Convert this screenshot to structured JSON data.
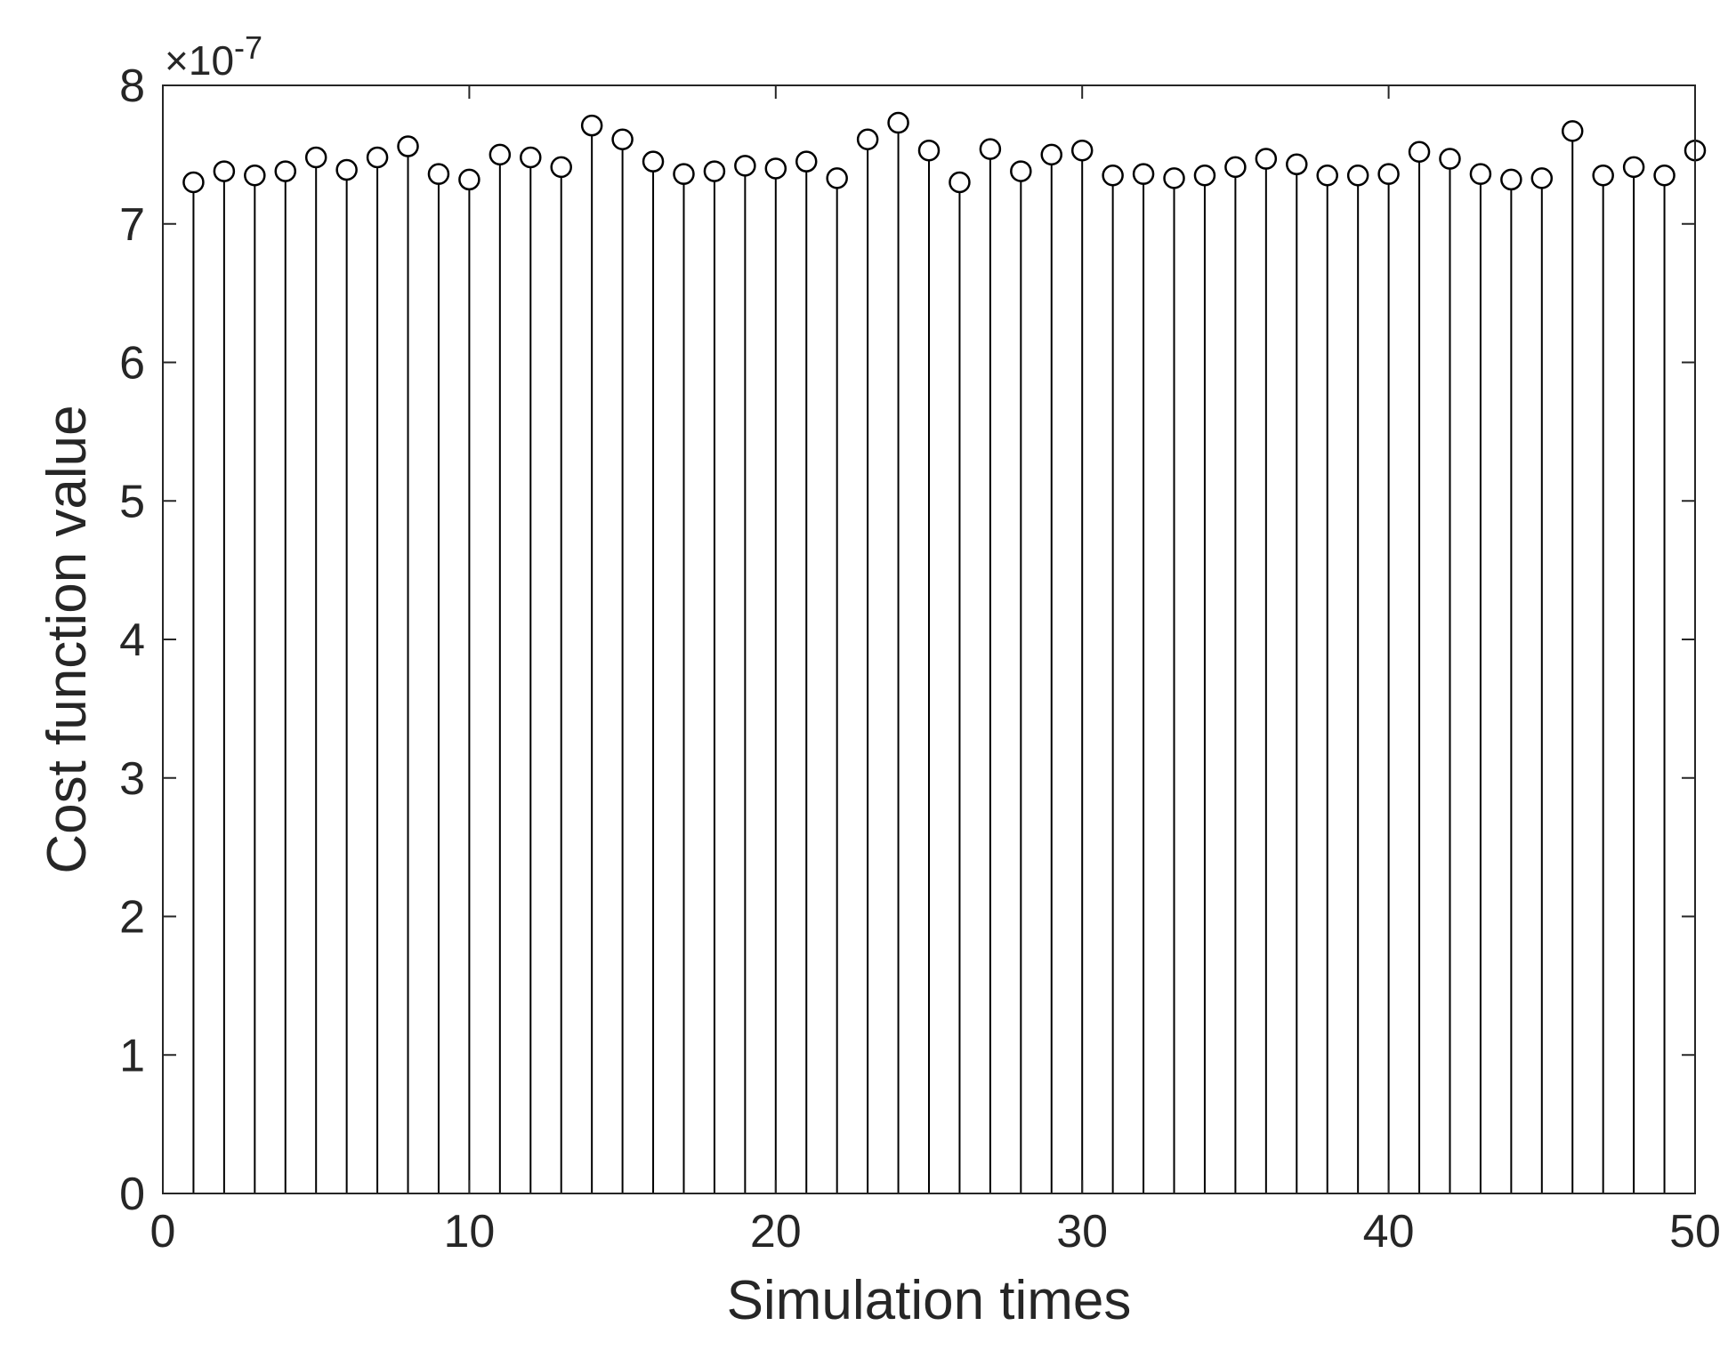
{
  "chart_data": {
    "type": "stem",
    "xlabel": "Simulation times",
    "ylabel": "Cost function value",
    "y_multiplier_base": "10",
    "y_multiplier_exponent": "-7",
    "xlim": [
      0,
      50
    ],
    "ylim": [
      0,
      8
    ],
    "xticks": [
      0,
      10,
      20,
      30,
      40,
      50
    ],
    "yticks": [
      0,
      1,
      2,
      3,
      4,
      5,
      6,
      7,
      8
    ],
    "grid": false,
    "color": "#000000",
    "series": [
      {
        "x": [
          1,
          2,
          3,
          4,
          5,
          6,
          7,
          8,
          9,
          10,
          11,
          12,
          13,
          14,
          15,
          16,
          17,
          18,
          19,
          20,
          21,
          22,
          23,
          24,
          25,
          26,
          27,
          28,
          29,
          30,
          31,
          32,
          33,
          34,
          35,
          36,
          37,
          38,
          39,
          40,
          41,
          42,
          43,
          44,
          45,
          46,
          47,
          48,
          49,
          50
        ],
        "values": [
          7.3,
          7.38,
          7.35,
          7.38,
          7.48,
          7.39,
          7.48,
          7.56,
          7.36,
          7.32,
          7.5,
          7.48,
          7.41,
          7.71,
          7.61,
          7.45,
          7.36,
          7.38,
          7.42,
          7.4,
          7.45,
          7.33,
          7.61,
          7.73,
          7.53,
          7.3,
          7.54,
          7.38,
          7.5,
          7.53,
          7.35,
          7.36,
          7.33,
          7.35,
          7.41,
          7.47,
          7.43,
          7.35,
          7.35,
          7.36,
          7.52,
          7.47,
          7.36,
          7.32,
          7.33,
          7.67,
          7.35,
          7.41,
          7.35,
          7.53
        ]
      }
    ]
  }
}
